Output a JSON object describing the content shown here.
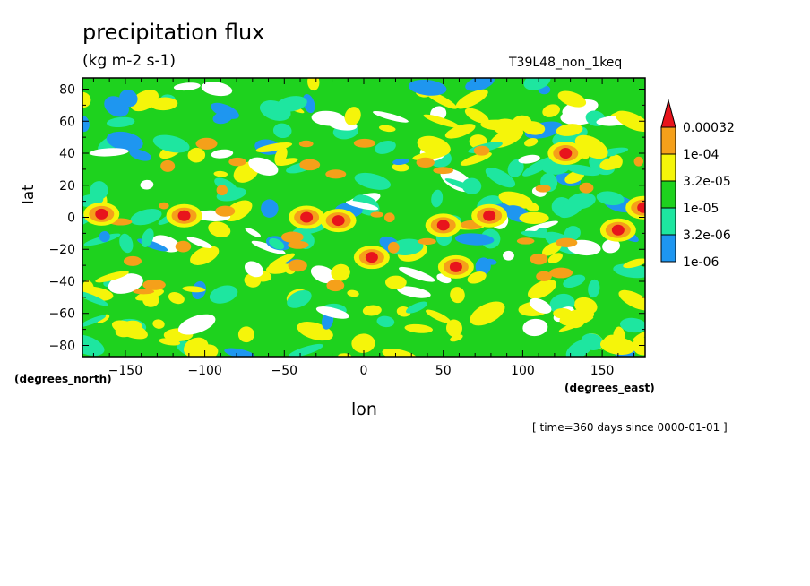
{
  "chart_data": {
    "type": "heatmap",
    "title": "precipitation flux",
    "units": "(kg m-2 s-1)",
    "dataset": "T39L48_non_1keq",
    "ylabel": "lat",
    "yunits": "(degrees_north)",
    "xlabel": "lon",
    "xunits": "(degrees_east)",
    "time_info": "[ time=360 days since 0000-01-01 ]",
    "xlim": [
      -177,
      177
    ],
    "ylim": [
      -87,
      87
    ],
    "x_ticks": [
      -150,
      -100,
      -50,
      0,
      50,
      100,
      150
    ],
    "x_tick_labels": [
      "−150",
      "−100",
      "−50",
      "0",
      "50",
      "100",
      "150"
    ],
    "y_ticks": [
      80,
      60,
      40,
      20,
      0,
      -20,
      -40,
      -60,
      -80
    ],
    "y_tick_labels": [
      "80",
      "60",
      "40",
      "20",
      "0",
      "−20",
      "−40",
      "−60",
      "−80"
    ],
    "colorbar": {
      "levels": [
        "0.00032",
        "1e-04",
        "3.2e-05",
        "1e-05",
        "3.2e-06",
        "1e-06"
      ],
      "colors": [
        "#e8141c",
        "#f5a01a",
        "#f5f50a",
        "#1ed21e",
        "#1ee6a0",
        "#1e96f0"
      ]
    },
    "background_color": "#1ed21e",
    "high_precip_cores": [
      {
        "lon": -165,
        "lat": 2
      },
      {
        "lon": -113,
        "lat": 1
      },
      {
        "lon": -36,
        "lat": 0
      },
      {
        "lon": -16,
        "lat": -2
      },
      {
        "lon": 5,
        "lat": -25
      },
      {
        "lon": 50,
        "lat": -5
      },
      {
        "lon": 58,
        "lat": -31
      },
      {
        "lon": 79,
        "lat": 1
      },
      {
        "lon": 127,
        "lat": 40
      },
      {
        "lon": 160,
        "lat": -8
      },
      {
        "lon": 176,
        "lat": 6
      }
    ]
  }
}
